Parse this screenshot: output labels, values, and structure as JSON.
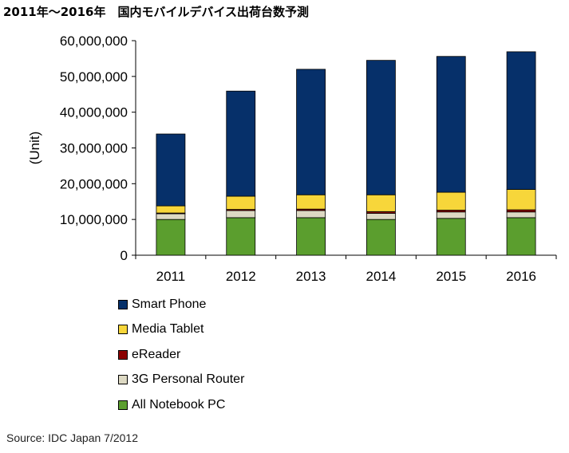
{
  "page": {
    "title": "2011年～2016年　国内モバイルデバイス出荷台数予測",
    "source": "Source: IDC Japan 7/2012"
  },
  "chart_data": {
    "type": "bar",
    "stacked": true,
    "categories": [
      "2011",
      "2012",
      "2013",
      "2014",
      "2015",
      "2016"
    ],
    "ylabel": "(Unit)",
    "ylim": [
      0,
      60000000
    ],
    "yticks": [
      0,
      10000000,
      20000000,
      30000000,
      40000000,
      50000000,
      60000000
    ],
    "ytick_labels": [
      "0",
      "10,000,000",
      "20,000,000",
      "30,000,000",
      "40,000,000",
      "50,000,000",
      "60,000,000"
    ],
    "grid": false,
    "legend_position": "bottom",
    "series": [
      {
        "name": "All Notebook PC",
        "color": "#5b9e2e",
        "values": [
          10000000,
          10500000,
          10500000,
          10000000,
          10300000,
          10500000
        ]
      },
      {
        "name": "3G Personal Router",
        "color": "#ddd9c3",
        "values": [
          1600000,
          2000000,
          2000000,
          1700000,
          1800000,
          1600000
        ]
      },
      {
        "name": "eReader",
        "color": "#8b0000",
        "values": [
          200000,
          300000,
          400000,
          500000,
          500000,
          600000
        ]
      },
      {
        "name": "Media Tablet",
        "color": "#f7d63a",
        "values": [
          2000000,
          3700000,
          4000000,
          4700000,
          5000000,
          5700000
        ]
      },
      {
        "name": "Smart Phone",
        "color": "#06306a",
        "values": [
          20100000,
          29400000,
          35100000,
          37600000,
          38000000,
          38500000
        ]
      }
    ],
    "legend_order": [
      "Smart Phone",
      "Media Tablet",
      "eReader",
      "3G Personal Router",
      "All Notebook PC"
    ]
  }
}
